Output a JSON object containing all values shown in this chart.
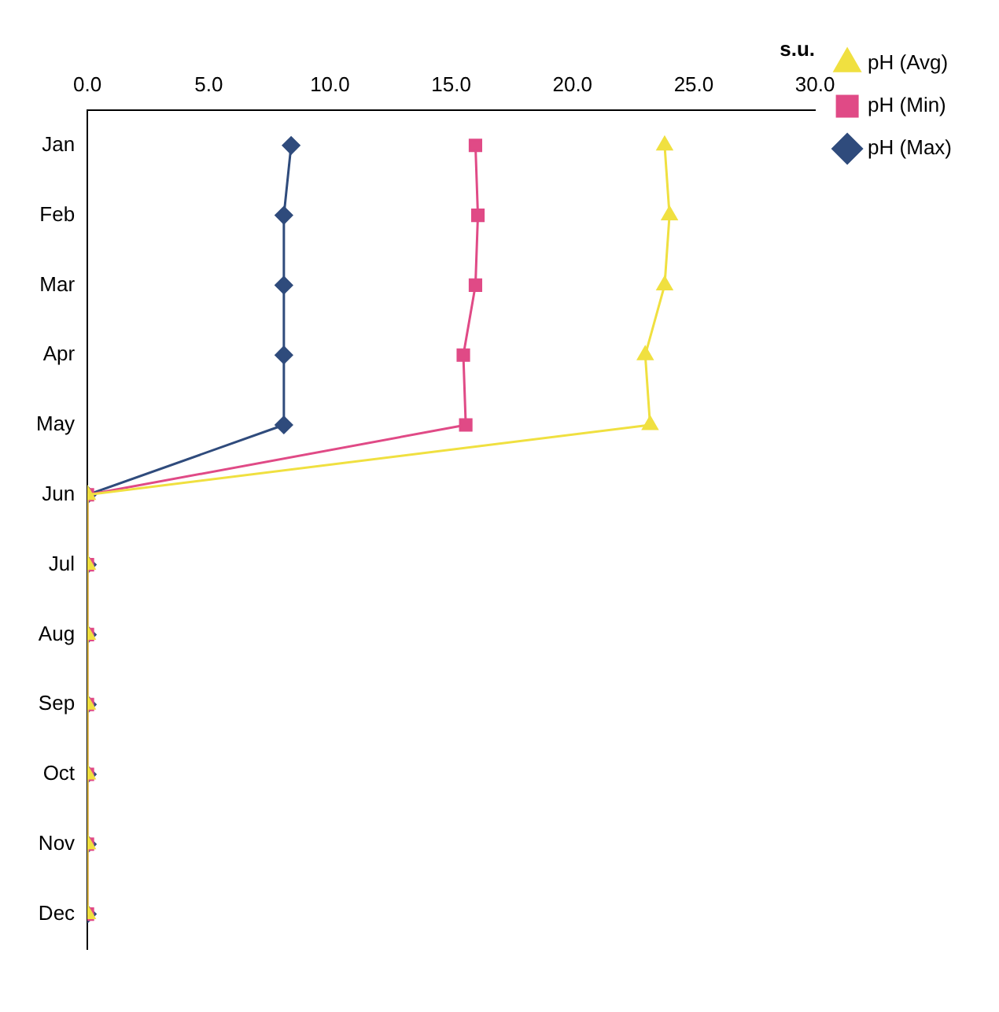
{
  "chart_data": {
    "type": "line",
    "orientation": "horizontal",
    "xlabel": "s.u.",
    "categories": [
      "Jan",
      "Feb",
      "Mar",
      "Apr",
      "May",
      "Jun",
      "Jul",
      "Aug",
      "Sep",
      "Oct",
      "Nov",
      "Dec"
    ],
    "xlim": [
      0,
      30
    ],
    "xticks": [
      {
        "value": 0,
        "label": "0.0"
      },
      {
        "value": 5,
        "label": "5.0"
      },
      {
        "value": 10,
        "label": "10.0"
      },
      {
        "value": 15,
        "label": "15.0"
      },
      {
        "value": 20,
        "label": "20.0"
      },
      {
        "value": 25,
        "label": "25.0"
      },
      {
        "value": 30,
        "label": "30.0"
      }
    ],
    "series": [
      {
        "name": "pH (Max)",
        "color": "#2f4b7c",
        "marker": "diamond",
        "values": [
          8.4,
          8.1,
          8.1,
          8.1,
          8.1,
          0,
          0,
          0,
          0,
          0,
          0,
          0
        ]
      },
      {
        "name": "pH (Min)",
        "color": "#e04a86",
        "marker": "square",
        "values": [
          16.0,
          16.1,
          16.0,
          15.5,
          15.6,
          0,
          0,
          0,
          0,
          0,
          0,
          0
        ]
      },
      {
        "name": "pH (Avg)",
        "color": "#f0e040",
        "marker": "triangle",
        "values": [
          23.8,
          24.0,
          23.8,
          23.0,
          23.2,
          0,
          0,
          0,
          0,
          0,
          0,
          0
        ]
      }
    ],
    "grid": false,
    "legend": "right"
  }
}
